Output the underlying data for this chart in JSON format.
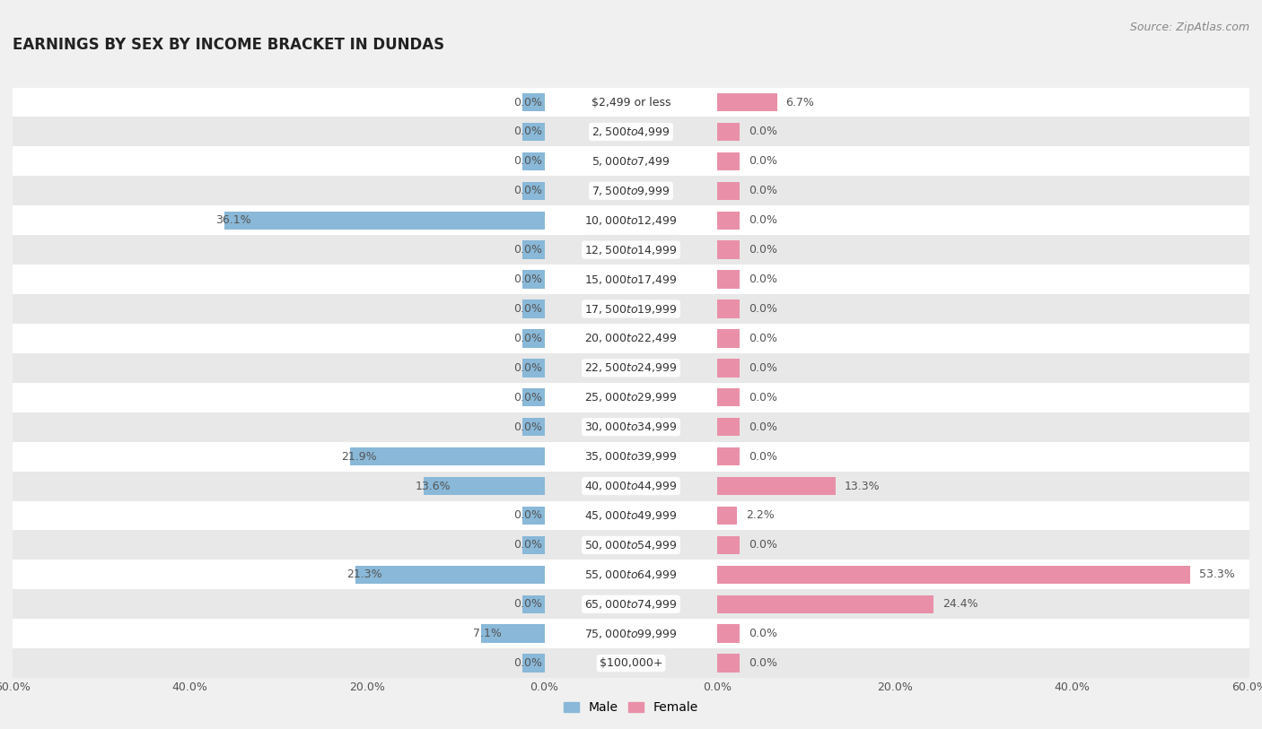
{
  "title": "EARNINGS BY SEX BY INCOME BRACKET IN DUNDAS",
  "source": "Source: ZipAtlas.com",
  "categories": [
    "$2,499 or less",
    "$2,500 to $4,999",
    "$5,000 to $7,499",
    "$7,500 to $9,999",
    "$10,000 to $12,499",
    "$12,500 to $14,999",
    "$15,000 to $17,499",
    "$17,500 to $19,999",
    "$20,000 to $22,499",
    "$22,500 to $24,999",
    "$25,000 to $29,999",
    "$30,000 to $34,999",
    "$35,000 to $39,999",
    "$40,000 to $44,999",
    "$45,000 to $49,999",
    "$50,000 to $54,999",
    "$55,000 to $64,999",
    "$65,000 to $74,999",
    "$75,000 to $99,999",
    "$100,000+"
  ],
  "male_values": [
    0.0,
    0.0,
    0.0,
    0.0,
    36.1,
    0.0,
    0.0,
    0.0,
    0.0,
    0.0,
    0.0,
    0.0,
    21.9,
    13.6,
    0.0,
    0.0,
    21.3,
    0.0,
    7.1,
    0.0
  ],
  "female_values": [
    6.7,
    0.0,
    0.0,
    0.0,
    0.0,
    0.0,
    0.0,
    0.0,
    0.0,
    0.0,
    0.0,
    0.0,
    0.0,
    13.3,
    2.2,
    0.0,
    53.3,
    24.4,
    0.0,
    0.0
  ],
  "male_color": "#89b8d8",
  "female_color": "#e990a8",
  "x_max": 60.0,
  "stub": 2.5,
  "bg_color": "#f0f0f0",
  "row_color_even": "#ffffff",
  "row_color_odd": "#e8e8e8",
  "title_fontsize": 12,
  "label_fontsize": 9,
  "tick_fontsize": 9,
  "source_fontsize": 9,
  "value_fontsize": 9
}
